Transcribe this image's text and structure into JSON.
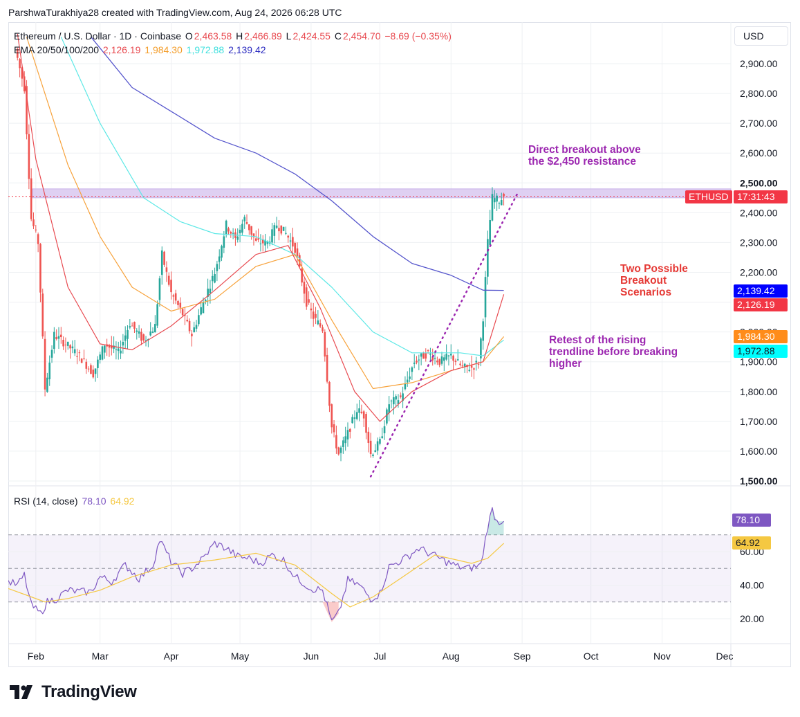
{
  "header": {
    "credit": "ParshwaTurakhiya28 created with TradingView.com, Aug 24, 2026 06:28 UTC"
  },
  "legend": {
    "symbol": "Ethereum / U.S. Dollar · 1D · Coinbase",
    "o_label": "O",
    "o_value": "2,463.58",
    "h_label": "H",
    "h_value": "2,466.89",
    "l_label": "L",
    "l_value": "2,424.55",
    "c_label": "C",
    "c_value": "2,454.70",
    "change": "−8.69 (−0.35%)",
    "ema_label": "EMA 20/50/100/200",
    "ema20": "2,126.19",
    "ema50": "1,984.30",
    "ema100": "1,972.88",
    "ema200": "2,139.42",
    "rsi_label": "RSI (14, close)",
    "rsi_value": "78.10",
    "rsi_ma_value": "64.92"
  },
  "price_axis": {
    "currency": "USD",
    "ticks": [
      "2,900.00",
      "2,800.00",
      "2,700.00",
      "2,600.00",
      "2,500.00",
      "2,400.00",
      "2,300.00",
      "2,200.00",
      "2,000.00",
      "1,900.00",
      "1,800.00",
      "1,700.00",
      "1,600.00",
      "1,500.00"
    ]
  },
  "rsi_axis": {
    "ticks": [
      "60.00",
      "40.00",
      "20.00"
    ]
  },
  "time_axis": {
    "labels": [
      "Feb",
      "Mar",
      "Apr",
      "May",
      "Jun",
      "Jul",
      "Aug",
      "Sep",
      "Oct",
      "Nov",
      "Dec"
    ]
  },
  "tags": {
    "symbol": "ETHUSD",
    "countdown": "17:31:43",
    "ema200": "2,139.42",
    "ema20": "2,126.19",
    "ema50": "1,984.30",
    "ema100": "1,972.88",
    "rsi": "78.10",
    "rsi_ma": "64.92"
  },
  "annotations": {
    "breakout": [
      "Direct breakout above",
      "the $2,450 resistance"
    ],
    "scenarios": [
      "Two Possible",
      "Breakout",
      "Scenarios"
    ],
    "retest": [
      "Retest of the rising",
      "trendline before breaking",
      "higher"
    ]
  },
  "brand": "TradingView",
  "colors": {
    "up": "#26a69a",
    "down": "#ef5350",
    "ema20": "#e84a50",
    "ema50": "#f7a23b",
    "ema100": "#5ce8e6",
    "ema200": "#5555cc",
    "rsi": "#7e57c2",
    "rsi_ma": "#f5c842",
    "annotation_purple": "#9c27b0",
    "annotation_red": "#e53935",
    "resistance_zone": "#d9c8f0"
  },
  "chart_data": [
    {
      "type": "candlestick",
      "title": "Ethereum / U.S. Dollar · 1D · Coinbase",
      "xlim": [
        "2026-01-20",
        "2026-12-01"
      ],
      "ylim": [
        1500,
        3000
      ],
      "resistance_zone": [
        2450,
        2480
      ],
      "trendline": [
        [
          "2026-06-27",
          1515
        ],
        [
          "2026-08-30",
          2465
        ]
      ],
      "anchors": [
        [
          "2026-01-23",
          2950
        ],
        [
          "2026-01-27",
          2820
        ],
        [
          "2026-01-30",
          2380
        ],
        [
          "2026-02-02",
          2300
        ],
        [
          "2026-02-05",
          1810
        ],
        [
          "2026-02-09",
          1990
        ],
        [
          "2026-02-14",
          1960
        ],
        [
          "2026-02-20",
          1920
        ],
        [
          "2026-02-26",
          1860
        ],
        [
          "2026-03-03",
          1960
        ],
        [
          "2026-03-09",
          1930
        ],
        [
          "2026-03-14",
          2030
        ],
        [
          "2026-03-20",
          1970
        ],
        [
          "2026-03-25",
          2020
        ],
        [
          "2026-03-28",
          2260
        ],
        [
          "2026-04-01",
          2130
        ],
        [
          "2026-04-06",
          2060
        ],
        [
          "2026-04-10",
          1990
        ],
        [
          "2026-04-15",
          2100
        ],
        [
          "2026-04-20",
          2200
        ],
        [
          "2026-04-25",
          2360
        ],
        [
          "2026-04-29",
          2310
        ],
        [
          "2026-05-03",
          2380
        ],
        [
          "2026-05-08",
          2300
        ],
        [
          "2026-05-13",
          2300
        ],
        [
          "2026-05-17",
          2360
        ],
        [
          "2026-05-21",
          2330
        ],
        [
          "2026-05-25",
          2280
        ],
        [
          "2026-05-30",
          2100
        ],
        [
          "2026-06-02",
          2050
        ],
        [
          "2026-06-06",
          2010
        ],
        [
          "2026-06-10",
          1680
        ],
        [
          "2026-06-13",
          1590
        ],
        [
          "2026-06-17",
          1660
        ],
        [
          "2026-06-21",
          1740
        ],
        [
          "2026-06-24",
          1720
        ],
        [
          "2026-06-27",
          1590
        ],
        [
          "2026-07-01",
          1630
        ],
        [
          "2026-07-05",
          1760
        ],
        [
          "2026-07-10",
          1780
        ],
        [
          "2026-07-16",
          1900
        ],
        [
          "2026-07-22",
          1930
        ],
        [
          "2026-07-27",
          1900
        ],
        [
          "2026-08-01",
          1920
        ],
        [
          "2026-08-06",
          1880
        ],
        [
          "2026-08-10",
          1880
        ],
        [
          "2026-08-13",
          1900
        ],
        [
          "2026-08-15",
          2050
        ],
        [
          "2026-08-17",
          2300
        ],
        [
          "2026-08-19",
          2450
        ],
        [
          "2026-08-22",
          2440
        ],
        [
          "2026-08-24",
          2455
        ]
      ],
      "ema": {
        "ema20": [
          [
            "2026-01-24",
            3000
          ],
          [
            "2026-02-01",
            2580
          ],
          [
            "2026-02-15",
            2150
          ],
          [
            "2026-03-01",
            1960
          ],
          [
            "2026-03-15",
            1940
          ],
          [
            "2026-04-01",
            2020
          ],
          [
            "2026-04-20",
            2140
          ],
          [
            "2026-05-08",
            2260
          ],
          [
            "2026-05-22",
            2290
          ],
          [
            "2026-06-05",
            2080
          ],
          [
            "2026-06-20",
            1800
          ],
          [
            "2026-07-01",
            1700
          ],
          [
            "2026-07-15",
            1800
          ],
          [
            "2026-08-01",
            1870
          ],
          [
            "2026-08-15",
            1900
          ],
          [
            "2026-08-24",
            2126.19
          ]
        ],
        "ema50": [
          [
            "2026-01-28",
            2990
          ],
          [
            "2026-02-15",
            2560
          ],
          [
            "2026-03-01",
            2320
          ],
          [
            "2026-03-15",
            2150
          ],
          [
            "2026-04-01",
            2070
          ],
          [
            "2026-04-20",
            2110
          ],
          [
            "2026-05-08",
            2220
          ],
          [
            "2026-05-25",
            2260
          ],
          [
            "2026-06-10",
            2040
          ],
          [
            "2026-06-28",
            1810
          ],
          [
            "2026-07-15",
            1830
          ],
          [
            "2026-08-01",
            1870
          ],
          [
            "2026-08-15",
            1900
          ],
          [
            "2026-08-24",
            1984.3
          ]
        ],
        "ema100": [
          [
            "2026-02-12",
            2990
          ],
          [
            "2026-03-01",
            2700
          ],
          [
            "2026-03-20",
            2450
          ],
          [
            "2026-04-05",
            2370
          ],
          [
            "2026-04-20",
            2330
          ],
          [
            "2026-05-08",
            2320
          ],
          [
            "2026-05-25",
            2260
          ],
          [
            "2026-06-10",
            2150
          ],
          [
            "2026-06-28",
            2000
          ],
          [
            "2026-07-15",
            1930
          ],
          [
            "2026-08-05",
            1930
          ],
          [
            "2026-08-15",
            1920
          ],
          [
            "2026-08-24",
            1972.88
          ]
        ],
        "ema200": [
          [
            "2026-02-25",
            2990
          ],
          [
            "2026-03-15",
            2820
          ],
          [
            "2026-04-01",
            2740
          ],
          [
            "2026-04-20",
            2650
          ],
          [
            "2026-05-08",
            2600
          ],
          [
            "2026-05-25",
            2530
          ],
          [
            "2026-06-10",
            2440
          ],
          [
            "2026-06-28",
            2320
          ],
          [
            "2026-07-15",
            2230
          ],
          [
            "2026-08-01",
            2190
          ],
          [
            "2026-08-15",
            2140
          ],
          [
            "2026-08-24",
            2139.42
          ]
        ]
      },
      "last": {
        "open": 2463.58,
        "high": 2466.89,
        "low": 2424.55,
        "close": 2454.7
      }
    },
    {
      "type": "line",
      "title": "RSI (14, close)",
      "xlim": [
        "2026-01-20",
        "2026-12-01"
      ],
      "ylim": [
        10,
        90
      ],
      "band": [
        30,
        70
      ],
      "midline": 50,
      "series": [
        {
          "name": "RSI",
          "points": [
            [
              "2026-01-20",
              42
            ],
            [
              "2026-01-24",
              40
            ],
            [
              "2026-01-27",
              46
            ],
            [
              "2026-01-30",
              28
            ],
            [
              "2026-02-03",
              23
            ],
            [
              "2026-02-06",
              30
            ],
            [
              "2026-02-10",
              32
            ],
            [
              "2026-02-15",
              37
            ],
            [
              "2026-02-20",
              36
            ],
            [
              "2026-02-25",
              36
            ],
            [
              "2026-03-01",
              45
            ],
            [
              "2026-03-06",
              42
            ],
            [
              "2026-03-12",
              52
            ],
            [
              "2026-03-18",
              44
            ],
            [
              "2026-03-24",
              52
            ],
            [
              "2026-03-27",
              67
            ],
            [
              "2026-04-01",
              54
            ],
            [
              "2026-04-06",
              47
            ],
            [
              "2026-04-10",
              50
            ],
            [
              "2026-04-15",
              56
            ],
            [
              "2026-04-20",
              65
            ],
            [
              "2026-04-25",
              62
            ],
            [
              "2026-04-30",
              57
            ],
            [
              "2026-05-05",
              56
            ],
            [
              "2026-05-10",
              53
            ],
            [
              "2026-05-15",
              58
            ],
            [
              "2026-05-20",
              55
            ],
            [
              "2026-05-25",
              45
            ],
            [
              "2026-06-01",
              38
            ],
            [
              "2026-06-06",
              37
            ],
            [
              "2026-06-10",
              18
            ],
            [
              "2026-06-13",
              23
            ],
            [
              "2026-06-17",
              43
            ],
            [
              "2026-06-22",
              40
            ],
            [
              "2026-06-27",
              32
            ],
            [
              "2026-07-01",
              35
            ],
            [
              "2026-07-05",
              51
            ],
            [
              "2026-07-12",
              56
            ],
            [
              "2026-07-18",
              62
            ],
            [
              "2026-07-24",
              58
            ],
            [
              "2026-07-30",
              54
            ],
            [
              "2026-08-04",
              51
            ],
            [
              "2026-08-09",
              50
            ],
            [
              "2026-08-14",
              52
            ],
            [
              "2026-08-17",
              75
            ],
            [
              "2026-08-19",
              85
            ],
            [
              "2026-08-21",
              78
            ],
            [
              "2026-08-24",
              78.1
            ]
          ]
        },
        {
          "name": "RSI MA",
          "points": [
            [
              "2026-01-20",
              38
            ],
            [
              "2026-01-28",
              34
            ],
            [
              "2026-02-05",
              30
            ],
            [
              "2026-02-15",
              32
            ],
            [
              "2026-03-01",
              37
            ],
            [
              "2026-03-15",
              45
            ],
            [
              "2026-04-01",
              52
            ],
            [
              "2026-04-20",
              55
            ],
            [
              "2026-05-08",
              59
            ],
            [
              "2026-05-25",
              52
            ],
            [
              "2026-06-10",
              35
            ],
            [
              "2026-06-18",
              27
            ],
            [
              "2026-06-28",
              33
            ],
            [
              "2026-07-10",
              44
            ],
            [
              "2026-07-25",
              58
            ],
            [
              "2026-08-10",
              53
            ],
            [
              "2026-08-17",
              56
            ],
            [
              "2026-08-24",
              64.92
            ]
          ]
        }
      ]
    }
  ]
}
